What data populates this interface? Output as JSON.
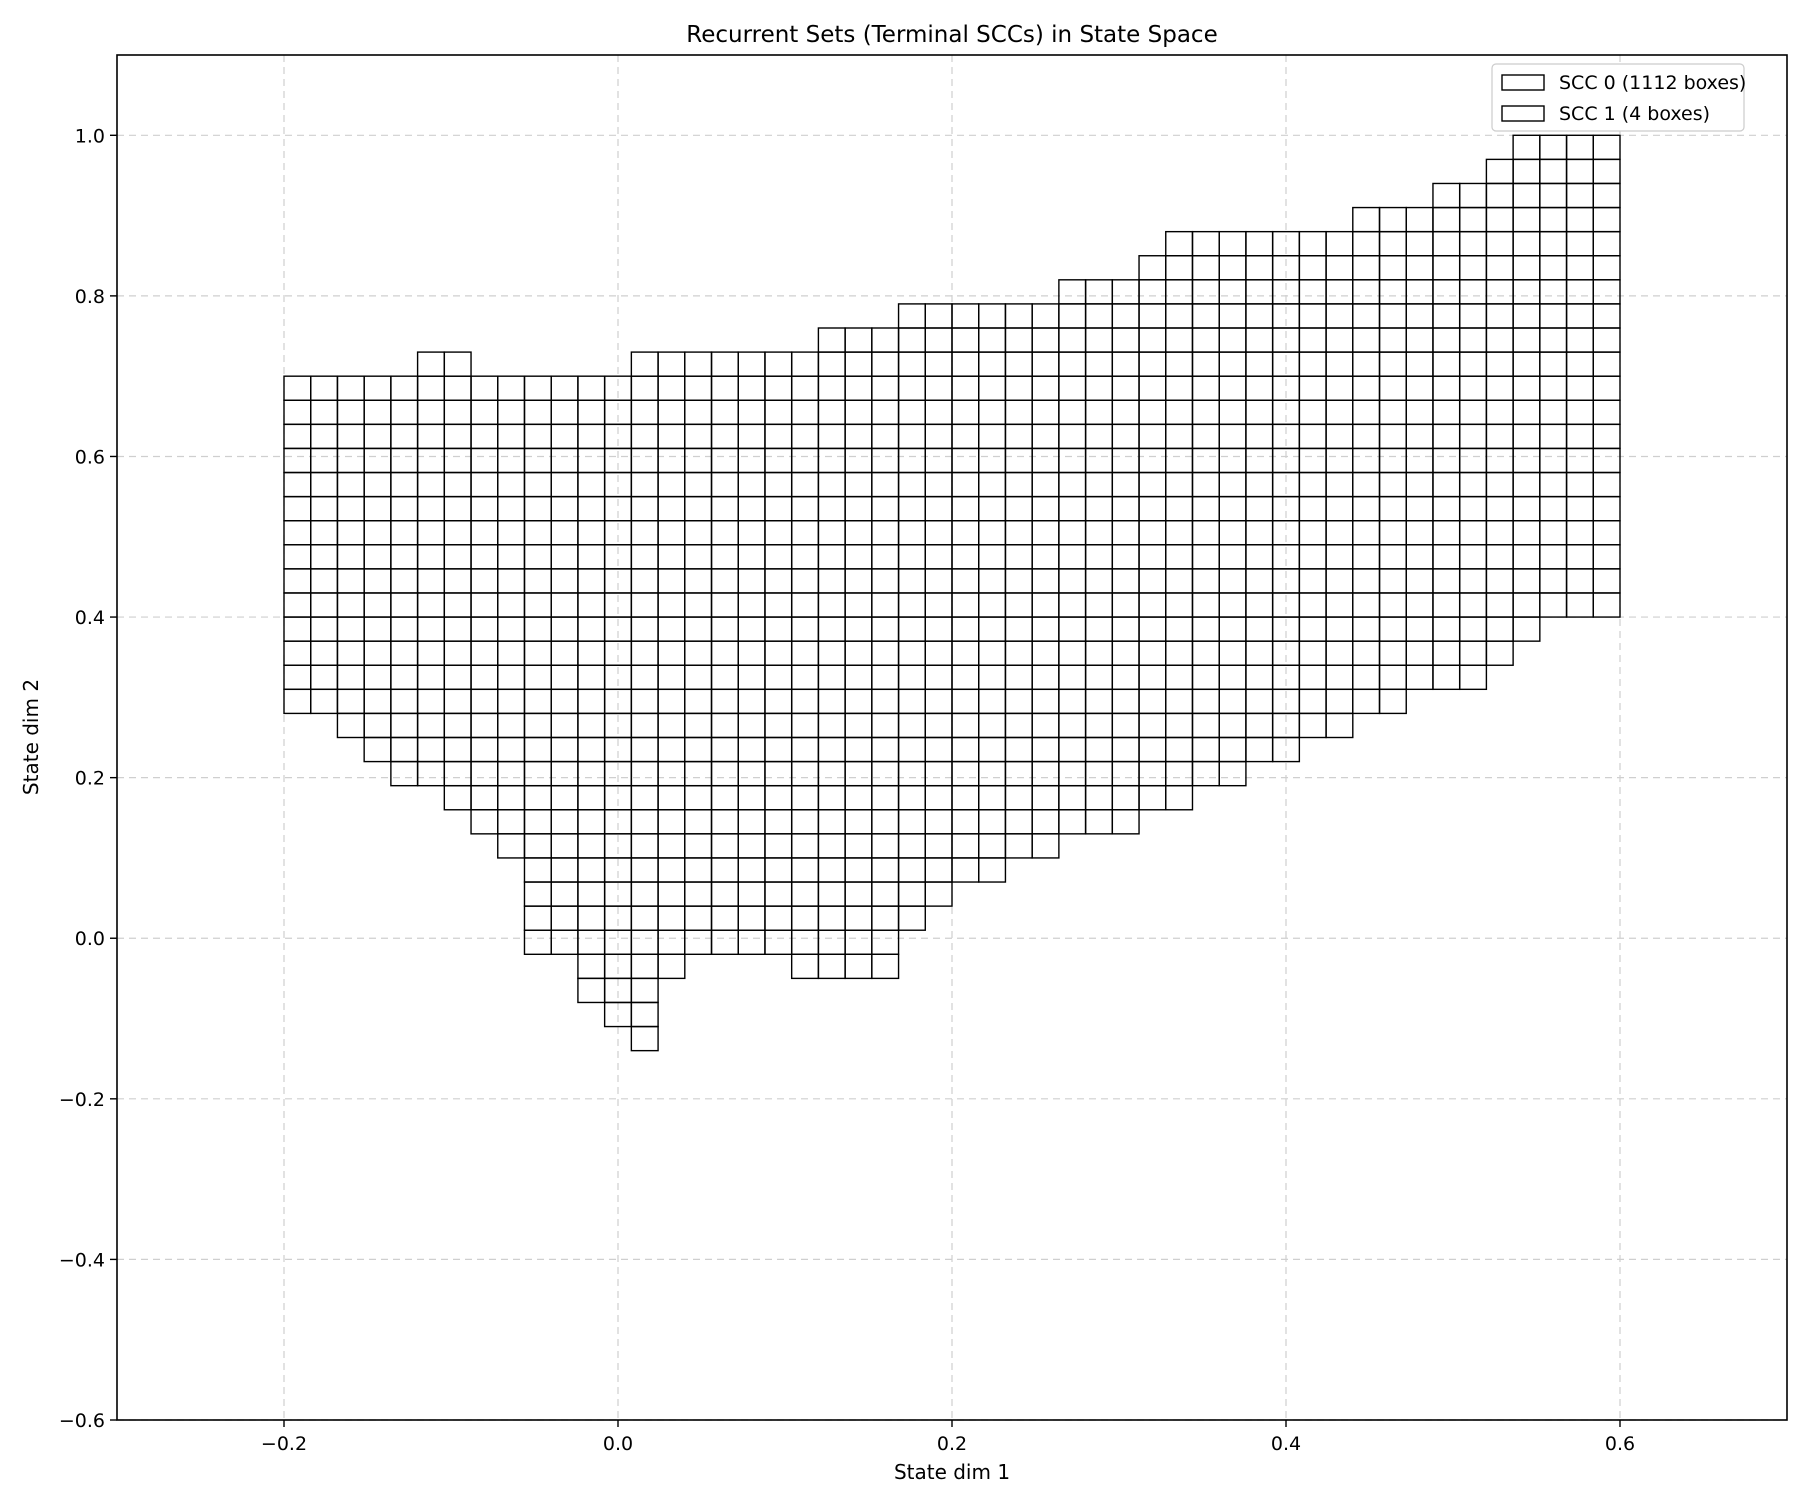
{
  "chart_data": {
    "type": "heatmap",
    "title": "Recurrent Sets (Terminal SCCs) in State Space",
    "xlabel": "State dim 1",
    "ylabel": "State dim 2",
    "xlim": [
      -0.3,
      0.7
    ],
    "ylim": [
      -0.6,
      1.1
    ],
    "xticks": [
      -0.2,
      0.0,
      0.2,
      0.4,
      0.6
    ],
    "xtick_labels": [
      "−0.2",
      "0.0",
      "0.2",
      "0.4",
      "0.6"
    ],
    "yticks": [
      -0.6,
      -0.4,
      -0.2,
      0.0,
      0.2,
      0.4,
      0.6,
      0.8,
      1.0
    ],
    "ytick_labels": [
      "−0.6",
      "−0.4",
      "−0.2",
      "0.0",
      "0.2",
      "0.4",
      "0.6",
      "0.8",
      "1.0"
    ],
    "grid": true,
    "legend_position": "top-right",
    "legend": [
      "SCC 0 (1112 boxes)",
      "SCC 1 (4 boxes)"
    ],
    "cell_size": [
      0.016,
      0.03
    ],
    "x_origin": -0.2,
    "y_origin": -0.14,
    "columns": [
      {
        "bottom": 0.28,
        "top": 0.7
      },
      {
        "bottom": 0.28,
        "top": 0.7
      },
      {
        "bottom": 0.25,
        "top": 0.7
      },
      {
        "bottom": 0.22,
        "top": 0.7
      },
      {
        "bottom": 0.19,
        "top": 0.7
      },
      {
        "bottom": 0.19,
        "top": 0.73
      },
      {
        "bottom": 0.16,
        "top": 0.73
      },
      {
        "bottom": 0.13,
        "top": 0.7
      },
      {
        "bottom": 0.1,
        "top": 0.7
      },
      {
        "bottom": -0.02,
        "top": 0.7
      },
      {
        "bottom": -0.02,
        "top": 0.7
      },
      {
        "bottom": -0.08,
        "top": 0.7
      },
      {
        "bottom": -0.11,
        "top": 0.7
      },
      {
        "bottom": -0.14,
        "top": 0.73
      },
      {
        "bottom": -0.05,
        "top": 0.73
      },
      {
        "bottom": -0.02,
        "top": 0.73
      },
      {
        "bottom": -0.02,
        "top": 0.73
      },
      {
        "bottom": -0.02,
        "top": 0.73
      },
      {
        "bottom": -0.02,
        "top": 0.73
      },
      {
        "bottom": -0.05,
        "top": 0.73
      },
      {
        "bottom": -0.05,
        "top": 0.76
      },
      {
        "bottom": -0.05,
        "top": 0.76
      },
      {
        "bottom": -0.05,
        "top": 0.76
      },
      {
        "bottom": 0.01,
        "top": 0.79
      },
      {
        "bottom": 0.04,
        "top": 0.79
      },
      {
        "bottom": 0.07,
        "top": 0.79
      },
      {
        "bottom": 0.07,
        "top": 0.79
      },
      {
        "bottom": 0.1,
        "top": 0.79
      },
      {
        "bottom": 0.1,
        "top": 0.79
      },
      {
        "bottom": 0.13,
        "top": 0.82
      },
      {
        "bottom": 0.13,
        "top": 0.82
      },
      {
        "bottom": 0.13,
        "top": 0.82
      },
      {
        "bottom": 0.16,
        "top": 0.85
      },
      {
        "bottom": 0.16,
        "top": 0.88
      },
      {
        "bottom": 0.19,
        "top": 0.88
      },
      {
        "bottom": 0.19,
        "top": 0.88
      },
      {
        "bottom": 0.22,
        "top": 0.88
      },
      {
        "bottom": 0.22,
        "top": 0.88
      },
      {
        "bottom": 0.25,
        "top": 0.88
      },
      {
        "bottom": 0.25,
        "top": 0.88
      },
      {
        "bottom": 0.28,
        "top": 0.91
      },
      {
        "bottom": 0.28,
        "top": 0.91
      },
      {
        "bottom": 0.31,
        "top": 0.91
      },
      {
        "bottom": 0.31,
        "top": 0.94
      },
      {
        "bottom": 0.31,
        "top": 0.94
      },
      {
        "bottom": 0.34,
        "top": 0.97
      },
      {
        "bottom": 0.37,
        "top": 1.0
      },
      {
        "bottom": 0.4,
        "top": 1.0
      },
      {
        "bottom": 0.4,
        "top": 1.0
      },
      {
        "bottom": 0.4,
        "top": 1.0
      }
    ]
  }
}
